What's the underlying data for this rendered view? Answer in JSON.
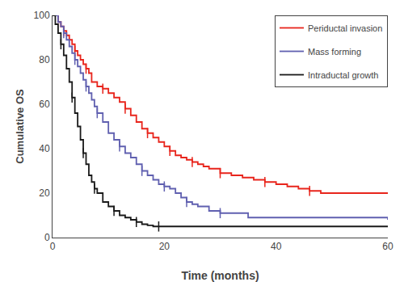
{
  "chart_data": {
    "type": "step",
    "title": "",
    "x_label": "Time (months)",
    "y_label": "Cumulative OS",
    "xlim": [
      0,
      60
    ],
    "ylim": [
      0,
      100
    ],
    "xticks": [
      0,
      20,
      40,
      60
    ],
    "yticks": [
      0,
      20,
      40,
      60,
      80,
      100
    ],
    "grid": false,
    "legend": "upper right",
    "marker": "vline",
    "series": [
      {
        "name": "Periductal invasion",
        "color": "#e8251c",
        "x": [
          0,
          1,
          1.5,
          2,
          2.5,
          3,
          3.5,
          4,
          4.5,
          5,
          5.5,
          6,
          6.5,
          7,
          8,
          9,
          10,
          11,
          12,
          13,
          14,
          15,
          16,
          17,
          18,
          19,
          20,
          21,
          22,
          23,
          24,
          25,
          26,
          27,
          28,
          30,
          32,
          34,
          36,
          38,
          40,
          42,
          44,
          46,
          48,
          60
        ],
        "values": [
          100,
          97,
          95,
          93,
          91,
          89,
          87,
          84,
          82,
          80,
          78,
          76,
          74,
          70,
          68,
          67,
          65,
          63,
          61,
          58,
          55,
          52,
          49,
          47,
          45,
          43,
          41,
          39,
          37,
          36,
          35,
          34,
          33,
          32,
          31,
          29,
          28,
          27,
          26,
          25,
          24,
          23,
          22,
          21,
          20,
          20
        ],
        "censor_x": [
          2,
          4,
          6,
          9,
          13,
          17,
          21,
          25,
          30,
          38,
          46
        ],
        "censor_values": [
          93,
          84,
          76,
          67,
          58,
          47,
          39,
          34,
          29,
          25,
          21
        ]
      },
      {
        "name": "Mass forming",
        "color": "#6060b0",
        "x": [
          0,
          1,
          1.5,
          2,
          2.5,
          3,
          3.5,
          4,
          4.5,
          5,
          5.5,
          6,
          6.5,
          7,
          7.5,
          8,
          9,
          10,
          11,
          12,
          13,
          14,
          15,
          16,
          17,
          18,
          19,
          20,
          21,
          22,
          23,
          24,
          25,
          26,
          28,
          30,
          35,
          60
        ],
        "values": [
          100,
          97,
          95,
          92,
          89,
          86,
          83,
          80,
          77,
          74,
          71,
          68,
          65,
          62,
          59,
          56,
          52,
          47,
          44,
          41,
          38,
          36,
          33,
          30,
          28,
          26,
          24,
          23,
          22,
          20,
          18,
          16,
          15,
          14,
          12,
          11,
          9,
          8
        ],
        "censor_x": [
          2,
          4,
          6,
          8,
          12,
          16,
          20,
          24,
          30
        ],
        "censor_values": [
          92,
          80,
          68,
          56,
          41,
          30,
          23,
          16,
          11
        ]
      },
      {
        "name": "Intraductal growth",
        "color": "#1a1a1a",
        "x": [
          0,
          0.5,
          1,
          1.5,
          2,
          2.5,
          3,
          3.5,
          4,
          4.5,
          5,
          5.5,
          6,
          6.5,
          7,
          7.5,
          8,
          9,
          10,
          11,
          12,
          13,
          14,
          15,
          16,
          17,
          18,
          19,
          20,
          25,
          60
        ],
        "values": [
          100,
          96,
          92,
          87,
          82,
          76,
          70,
          63,
          56,
          50,
          44,
          38,
          33,
          28,
          25,
          22,
          20,
          16,
          14,
          12,
          10,
          9,
          8,
          7,
          6,
          5.5,
          5,
          5,
          5,
          5,
          5
        ],
        "censor_x": [
          1.5,
          3.5,
          5.5,
          7.5,
          11,
          15,
          19
        ],
        "censor_values": [
          87,
          63,
          38,
          22,
          12,
          7,
          5
        ]
      }
    ]
  }
}
